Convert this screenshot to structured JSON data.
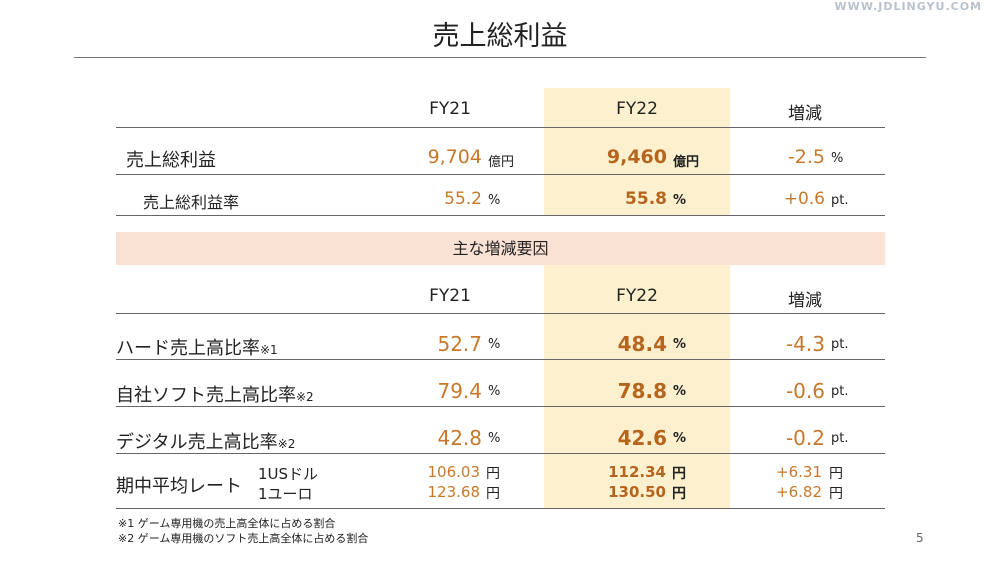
{
  "watermark": "WWW.JDLINGYU.COM",
  "title": "売上総利益",
  "col_headers": {
    "fy21": "FY21",
    "fy22": "FY22",
    "change": "増減"
  },
  "summary": {
    "gross_profit": {
      "label": "売上総利益",
      "fy21": "9,704",
      "fy21_unit": "億円",
      "fy22": "9,460",
      "fy22_unit": "億円",
      "change": "-2.5",
      "change_unit": "%"
    },
    "margin": {
      "label": "売上総利益率",
      "fy21": "55.2",
      "fy21_unit": "%",
      "fy22": "55.8",
      "fy22_unit": "%",
      "change": "+0.6",
      "change_unit": "pt."
    }
  },
  "factors_title": "主な増減要因",
  "factors": {
    "hard_ratio": {
      "label": "ハード売上高比率",
      "note": "※1",
      "fy21": "52.7",
      "fy21_unit": "%",
      "fy22": "48.4",
      "fy22_unit": "%",
      "change": "-4.3",
      "change_unit": "pt."
    },
    "own_soft_ratio": {
      "label": "自社ソフト売上高比率",
      "note": "※2",
      "fy21": "79.4",
      "fy21_unit": "%",
      "fy22": "78.8",
      "fy22_unit": "%",
      "change": "-0.6",
      "change_unit": "pt."
    },
    "digital_ratio": {
      "label": "デジタル売上高比率",
      "note": "※2",
      "fy21": "42.8",
      "fy21_unit": "%",
      "fy22": "42.6",
      "fy22_unit": "%",
      "change": "-0.2",
      "change_unit": "pt."
    },
    "fx": {
      "label": "期中平均レート",
      "usd_label": "1USドル",
      "eur_label": "1ユーロ",
      "usd_fy21": "106.03",
      "usd_fy22": "112.34",
      "usd_change": "+6.31",
      "eur_fy21": "123.68",
      "eur_fy22": "130.50",
      "eur_change": "+6.82",
      "unit": "円"
    }
  },
  "footnotes": [
    "※1 ゲーム専用機の売上高全体に占める割合",
    "※2 ゲーム専用機のソフト売上高全体に占める割合"
  ],
  "page_number": "5"
}
